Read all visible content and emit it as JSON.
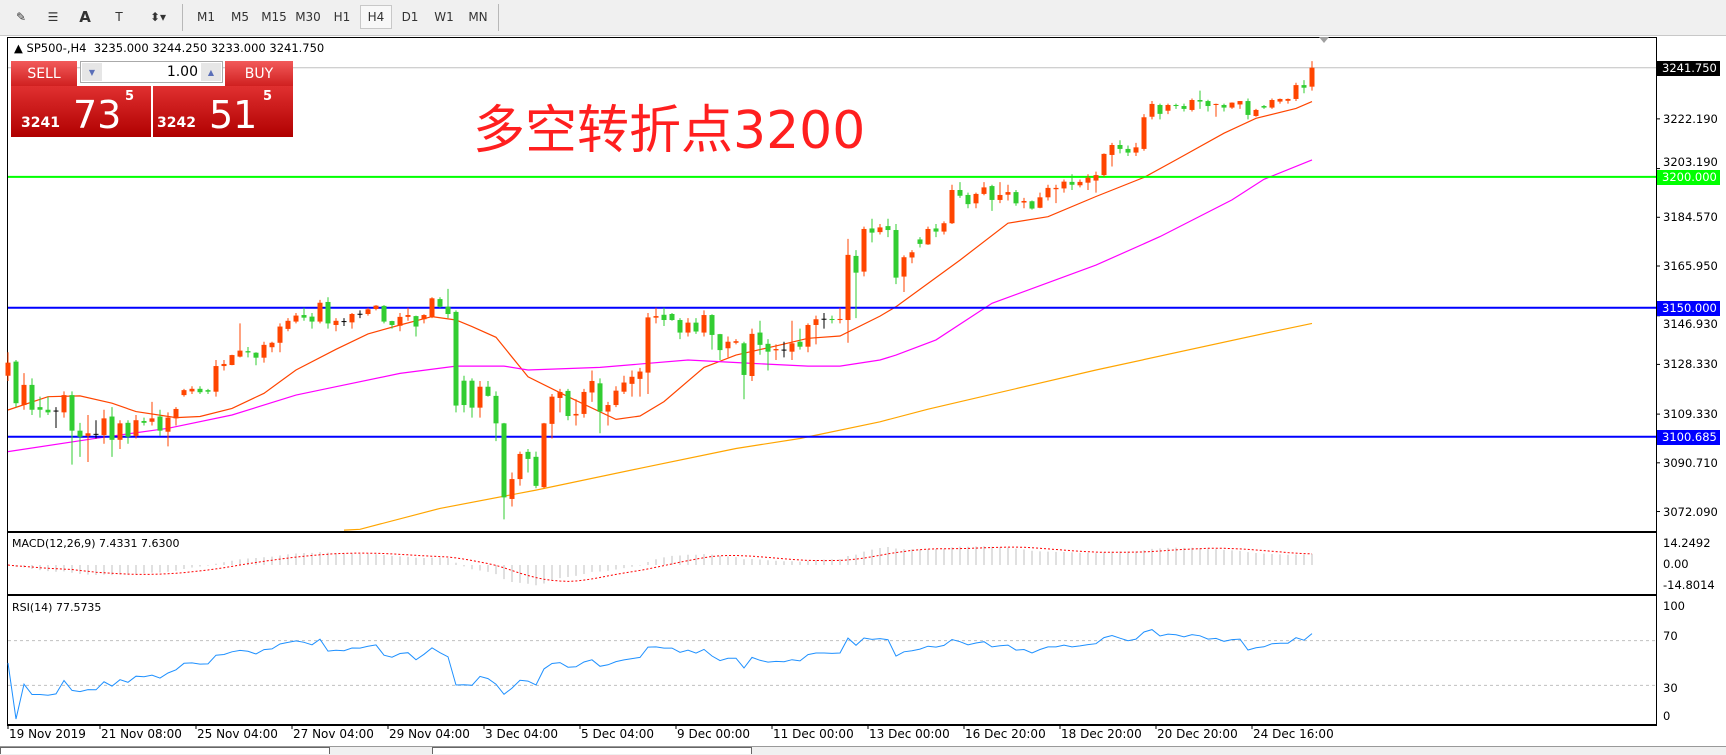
{
  "toolbar": {
    "tools": [
      {
        "name": "elliott-wave-icon",
        "glyph": "✎"
      },
      {
        "name": "fibo-fan-icon",
        "glyph": "☰"
      },
      {
        "name": "text-icon",
        "glyph": "A"
      },
      {
        "name": "text-label-icon",
        "glyph": "T"
      },
      {
        "name": "arrows-dropdown-icon",
        "glyph": "⬍▾"
      }
    ],
    "timeframes": [
      "M1",
      "M5",
      "M15",
      "M30",
      "H1",
      "H4",
      "D1",
      "W1",
      "MN"
    ],
    "active_timeframe": "H4"
  },
  "header": {
    "arrow": "▲",
    "symbol": "SP500-,H4",
    "ohlc": "3235.000 3244.250 3233.000 3241.750"
  },
  "trade_panel": {
    "sell_label": "SELL",
    "buy_label": "BUY",
    "lot": "1.00",
    "sell_price": {
      "prefix": "3241",
      "big": "73",
      "sup": "5"
    },
    "buy_price": {
      "prefix": "3242",
      "big": "51",
      "sup": "5"
    }
  },
  "annotation": "多空转折点3200",
  "colors": {
    "up": "#ff4500",
    "down": "#32cd32",
    "doji": "#000000",
    "ma_fast": "#ff4500",
    "ma_mid": "#ff00ff",
    "ma_slow": "#ffa500",
    "support_green": "#00ff00",
    "level_blue": "#0000ff",
    "rsi": "#1e90ff",
    "macd_hist": "#c0c0c0",
    "macd_signal": "#ff0000"
  },
  "price_axis": {
    "ticks": [
      "3222.190",
      "3203.190",
      "3184.570",
      "3165.950",
      "3146.930",
      "3128.330",
      "3109.330",
      "3090.710",
      "3072.090"
    ],
    "current": "3241.750",
    "levels": [
      {
        "value": "3200.000",
        "color": "#00ff00"
      },
      {
        "value": "3150.000",
        "color": "#0000ff"
      },
      {
        "value": "3100.685",
        "color": "#0000ff"
      }
    ]
  },
  "macd": {
    "label": "MACD(12,26,9) 7.4331 7.6300",
    "ticks": [
      "14.2492",
      "0.00",
      "-14.8014"
    ]
  },
  "rsi": {
    "label": "RSI(14) 77.5735",
    "ticks": [
      "100",
      "70",
      "30",
      "0"
    ],
    "levels": [
      70,
      30
    ]
  },
  "time_axis": [
    "19 Nov 2019",
    "21 Nov 08:00",
    "25 Nov 04:00",
    "27 Nov 04:00",
    "29 Nov 04:00",
    "3 Dec 04:00",
    "5 Dec 04:00",
    "9 Dec 00:00",
    "11 Dec 00:00",
    "13 Dec 00:00",
    "16 Dec 20:00",
    "18 Dec 20:00",
    "20 Dec 20:00",
    "24 Dec 16:00"
  ],
  "chart_data": {
    "type": "candlestick",
    "symbol": "SP500-",
    "timeframe": "H4",
    "ylim": [
      3065,
      3248
    ],
    "candles_ohlc": [
      [
        3124,
        3133,
        3122,
        3129
      ],
      [
        3129.4,
        3130,
        3112,
        3113.5
      ],
      [
        3112.8,
        3125,
        3111,
        3120.5
      ],
      [
        3120.5,
        3123,
        3109,
        3111
      ],
      [
        3112,
        3116,
        3108,
        3111
      ],
      [
        3111,
        3116,
        3109,
        3110
      ],
      [
        3110.5,
        3112,
        3104,
        3110.5
      ],
      [
        3110,
        3118,
        3108,
        3116.6
      ],
      [
        3116.6,
        3118,
        3090,
        3103
      ],
      [
        3103,
        3106,
        3093,
        3100.7
      ],
      [
        3101,
        3109,
        3091,
        3102
      ],
      [
        3101.6,
        3107,
        3100,
        3101.6
      ],
      [
        3101.3,
        3111,
        3098,
        3107.7
      ],
      [
        3108.4,
        3112,
        3093,
        3099.5
      ],
      [
        3099.5,
        3107,
        3096,
        3105.8
      ],
      [
        3106,
        3107,
        3098,
        3100.7
      ],
      [
        3101,
        3109,
        3100,
        3107
      ],
      [
        3106.7,
        3108,
        3105,
        3106
      ],
      [
        3106.4,
        3114,
        3105,
        3107.7
      ],
      [
        3108.4,
        3111,
        3101,
        3103
      ],
      [
        3102.6,
        3110,
        3097,
        3108
      ],
      [
        3107.7,
        3112,
        3105,
        3111.3
      ],
      [
        3116.6,
        3119,
        3116,
        3118.5
      ],
      [
        3118,
        3120,
        3117,
        3119
      ],
      [
        3119,
        3120,
        3117,
        3117.7
      ],
      [
        3118.5,
        3119,
        3117,
        3117.9
      ],
      [
        3117.9,
        3130,
        3116,
        3127.7
      ],
      [
        3127.7,
        3130,
        3126,
        3128.5
      ],
      [
        3128.1,
        3132,
        3128,
        3131.9
      ],
      [
        3131.3,
        3144,
        3131,
        3133.6
      ],
      [
        3133.4,
        3135,
        3131,
        3132.9
      ],
      [
        3132.8,
        3133,
        3128,
        3130.9
      ],
      [
        3130.9,
        3137,
        3129,
        3135.8
      ],
      [
        3134.9,
        3137,
        3133,
        3136.6
      ],
      [
        3136.6,
        3144,
        3133,
        3142.8
      ],
      [
        3141.9,
        3146,
        3141,
        3145
      ],
      [
        3144.7,
        3148,
        3144,
        3147
      ],
      [
        3147.2,
        3150,
        3145,
        3146.2
      ],
      [
        3146.6,
        3148,
        3142,
        3144.7
      ],
      [
        3144.7,
        3153,
        3144,
        3151.9
      ],
      [
        3152.2,
        3154,
        3142,
        3144
      ],
      [
        3143.4,
        3146,
        3141,
        3145
      ],
      [
        3144.7,
        3146,
        3143,
        3144.7
      ],
      [
        3144.4,
        3148,
        3142,
        3147.6
      ],
      [
        3147.5,
        3149,
        3146,
        3147.5
      ],
      [
        3147.6,
        3150,
        3147,
        3149.4
      ],
      [
        3149.5,
        3151,
        3149,
        3150.8
      ],
      [
        3150.7,
        3151,
        3144,
        3144.7
      ],
      [
        3144.9,
        3145,
        3142,
        3143.4
      ],
      [
        3143.1,
        3148,
        3141,
        3146.5
      ],
      [
        3146.5,
        3150,
        3145,
        3147.2
      ],
      [
        3146.8,
        3147,
        3139,
        3142.8
      ],
      [
        3145.6,
        3147.5,
        3144,
        3147.2
      ],
      [
        3146.6,
        3154,
        3146,
        3153.6
      ],
      [
        3153.3,
        3154,
        3150,
        3150.4
      ],
      [
        3150.4,
        3157.2,
        3146,
        3147.6
      ],
      [
        3148.4,
        3149,
        3110,
        3112.6
      ],
      [
        3122.1,
        3124,
        3110,
        3112.8
      ],
      [
        3122.1,
        3123,
        3108,
        3111.8
      ],
      [
        3111.8,
        3122,
        3108,
        3119.8
      ],
      [
        3119.8,
        3122,
        3116,
        3116.3
      ],
      [
        3116.3,
        3118,
        3099,
        3105.8
      ],
      [
        3105.8,
        3106,
        3069.1,
        3077.5
      ],
      [
        3076.9,
        3087,
        3074,
        3084.5
      ],
      [
        3084.5,
        3095,
        3082,
        3094.1
      ],
      [
        3094.9,
        3096,
        3087,
        3092.2
      ],
      [
        3093,
        3095,
        3081,
        3081.9
      ],
      [
        3081.4,
        3106,
        3081,
        3105.8
      ],
      [
        3105.6,
        3117,
        3100,
        3116
      ],
      [
        3115.5,
        3119,
        3110,
        3117.8
      ],
      [
        3118.2,
        3119,
        3107,
        3108.6
      ],
      [
        3108.8,
        3115,
        3105,
        3109.4
      ],
      [
        3109.4,
        3119,
        3108,
        3117.8
      ],
      [
        3117.6,
        3126,
        3114,
        3122
      ],
      [
        3121.1,
        3123,
        3102,
        3110.3
      ],
      [
        3110.3,
        3114,
        3105,
        3112.8
      ],
      [
        3112.8,
        3120,
        3112,
        3118.3
      ],
      [
        3117.9,
        3124,
        3117,
        3121.4
      ],
      [
        3120.9,
        3126,
        3116,
        3123.6
      ],
      [
        3122.8,
        3127,
        3116,
        3125.6
      ],
      [
        3125.2,
        3148,
        3117,
        3146.3
      ],
      [
        3146.2,
        3150,
        3144,
        3146.8
      ],
      [
        3147.3,
        3150,
        3143,
        3145.3
      ],
      [
        3147.6,
        3148,
        3145,
        3145.3
      ],
      [
        3145.3,
        3146,
        3138,
        3140.5
      ],
      [
        3140.5,
        3146,
        3139,
        3144.3
      ],
      [
        3144.3,
        3146,
        3140,
        3140.9
      ],
      [
        3140.5,
        3149,
        3139,
        3147.2
      ],
      [
        3147.2,
        3147.5,
        3134,
        3139.6
      ],
      [
        3139.9,
        3140,
        3130,
        3133.8
      ],
      [
        3134.5,
        3139,
        3131,
        3137
      ],
      [
        3136.6,
        3138,
        3136,
        3137.2
      ],
      [
        3136.4,
        3137,
        3115,
        3124.3
      ],
      [
        3123.9,
        3142,
        3122,
        3140
      ],
      [
        3140.5,
        3145,
        3132,
        3135.8
      ],
      [
        3136.2,
        3138,
        3126,
        3133.2
      ],
      [
        3133.7,
        3136,
        3130,
        3134.2
      ],
      [
        3133.8,
        3137,
        3131,
        3133.8
      ],
      [
        3133.2,
        3145,
        3130,
        3136.4
      ],
      [
        3137,
        3142,
        3134,
        3135.1
      ],
      [
        3135.1,
        3144,
        3133,
        3143.4
      ],
      [
        3143.4,
        3147,
        3136,
        3145.6
      ],
      [
        3145.6,
        3148,
        3142,
        3145.6
      ],
      [
        3145.7,
        3147,
        3144,
        3145.3
      ],
      [
        3145.3,
        3150,
        3144,
        3145.7
      ],
      [
        3145.3,
        3176.3,
        3136.6,
        3170.2
      ],
      [
        3169.8,
        3172,
        3146,
        3163.4
      ],
      [
        3163.8,
        3181,
        3162,
        3180.1
      ],
      [
        3180.3,
        3184,
        3175,
        3178.7
      ],
      [
        3178.9,
        3182,
        3178,
        3180.7
      ],
      [
        3181.2,
        3184,
        3177,
        3179.7
      ],
      [
        3179.7,
        3182,
        3159,
        3161.5
      ],
      [
        3161.9,
        3170,
        3156,
        3169.3
      ],
      [
        3169.2,
        3172,
        3167,
        3171.2
      ],
      [
        3176.1,
        3177,
        3173,
        3174.4
      ],
      [
        3174.2,
        3181,
        3174,
        3180.1
      ],
      [
        3180.3,
        3182,
        3177,
        3179.1
      ],
      [
        3179.1,
        3183,
        3178,
        3182.3
      ],
      [
        3182.3,
        3197,
        3182,
        3195
      ],
      [
        3195,
        3198,
        3192,
        3192.8
      ],
      [
        3193.1,
        3194,
        3188,
        3189.6
      ],
      [
        3189.9,
        3194,
        3188,
        3193.5
      ],
      [
        3193.5,
        3198,
        3193,
        3196
      ],
      [
        3196.5,
        3197,
        3187,
        3191.2
      ],
      [
        3191.2,
        3198,
        3190,
        3193.1
      ],
      [
        3193.2,
        3197,
        3191,
        3194.2
      ],
      [
        3194.2,
        3195,
        3189,
        3189.9
      ],
      [
        3190.2,
        3192,
        3188,
        3190.8
      ],
      [
        3190.7,
        3191,
        3187.5,
        3187.9
      ],
      [
        3188.2,
        3194,
        3188,
        3192.2
      ],
      [
        3192.2,
        3197,
        3191,
        3195.8
      ],
      [
        3195.3,
        3197,
        3190,
        3195.8
      ],
      [
        3195.6,
        3199,
        3194,
        3198.2
      ],
      [
        3198.1,
        3201,
        3195,
        3197
      ],
      [
        3196.8,
        3199,
        3196,
        3198.1
      ],
      [
        3197.8,
        3201,
        3195,
        3199.7
      ],
      [
        3198.6,
        3202,
        3194,
        3200.7
      ],
      [
        3200.7,
        3209,
        3200,
        3208.8
      ],
      [
        3208.4,
        3213,
        3204,
        3212.2
      ],
      [
        3212.2,
        3214,
        3209,
        3210.7
      ],
      [
        3210.7,
        3212,
        3208,
        3209.3
      ],
      [
        3209.3,
        3213,
        3208,
        3211.3
      ],
      [
        3210.7,
        3224,
        3210,
        3222.8
      ],
      [
        3223,
        3229,
        3222,
        3227.9
      ],
      [
        3227.5,
        3228,
        3222,
        3224.1
      ],
      [
        3225.3,
        3228,
        3224,
        3227.5
      ],
      [
        3227.5,
        3228,
        3226,
        3227.1
      ],
      [
        3227.1,
        3228,
        3225,
        3226
      ],
      [
        3225.6,
        3230,
        3225,
        3229.4
      ],
      [
        3229.4,
        3233,
        3226,
        3228.8
      ],
      [
        3229,
        3229.5,
        3225,
        3227.1
      ],
      [
        3227.5,
        3228,
        3223,
        3227.9
      ],
      [
        3227.5,
        3228,
        3225,
        3226.5
      ],
      [
        3226.5,
        3228.5,
        3226,
        3228.4
      ],
      [
        3227.7,
        3229,
        3226,
        3229
      ],
      [
        3229,
        3230,
        3222,
        3223.7
      ],
      [
        3223.3,
        3226,
        3223,
        3225.6
      ],
      [
        3227.1,
        3227.5,
        3226,
        3226.5
      ],
      [
        3226.5,
        3230,
        3226,
        3229.4
      ],
      [
        3228.8,
        3230,
        3228,
        3229.8
      ],
      [
        3229.1,
        3230,
        3228,
        3229.8
      ],
      [
        3229.8,
        3236,
        3229,
        3235.1
      ],
      [
        3235.1,
        3237,
        3232,
        3234.1
      ],
      [
        3234.5,
        3244.25,
        3233,
        3241.75
      ]
    ],
    "moving_averages": [
      {
        "color": "#ff4500",
        "points": [
          [
            0,
            3110.9
          ],
          [
            5,
            3116
          ],
          [
            9,
            3116.3
          ],
          [
            13,
            3113.5
          ],
          [
            16,
            3110.3
          ],
          [
            21,
            3108
          ],
          [
            24,
            3108.4
          ],
          [
            28,
            3111.5
          ],
          [
            32,
            3117.3
          ],
          [
            36,
            3126.2
          ],
          [
            41,
            3134.1
          ],
          [
            45,
            3140
          ],
          [
            49,
            3143.4
          ],
          [
            53,
            3146.6
          ],
          [
            56,
            3145.3
          ],
          [
            58,
            3142.8
          ],
          [
            61,
            3138.7
          ],
          [
            65,
            3123.6
          ],
          [
            70,
            3116
          ],
          [
            76,
            3107.3
          ],
          [
            79,
            3108.6
          ],
          [
            82,
            3114.1
          ],
          [
            87,
            3127.2
          ],
          [
            91,
            3131.9
          ],
          [
            96,
            3135.4
          ],
          [
            100,
            3138.3
          ],
          [
            104,
            3139.2
          ],
          [
            109,
            3146.8
          ],
          [
            111,
            3150.4
          ],
          [
            119,
            3168.2
          ],
          [
            125,
            3182.3
          ],
          [
            130,
            3184.8
          ],
          [
            136,
            3192.5
          ],
          [
            142,
            3199.8
          ],
          [
            146,
            3206.5
          ],
          [
            152,
            3216.7
          ],
          [
            156,
            3222.4
          ],
          [
            161,
            3226.2
          ],
          [
            163,
            3228.8
          ]
        ]
      },
      {
        "color": "#ff00ff",
        "points": [
          [
            0,
            3095
          ],
          [
            11,
            3100.1
          ],
          [
            20,
            3103.9
          ],
          [
            28,
            3109
          ],
          [
            36,
            3116.6
          ],
          [
            41,
            3119.8
          ],
          [
            49,
            3124.9
          ],
          [
            56,
            3127.7
          ],
          [
            62,
            3127.7
          ],
          [
            65,
            3126.2
          ],
          [
            74,
            3127.2
          ],
          [
            85,
            3130
          ],
          [
            93,
            3128.7
          ],
          [
            100,
            3127.7
          ],
          [
            104,
            3127.7
          ],
          [
            109,
            3130
          ],
          [
            111,
            3131.9
          ],
          [
            116,
            3137.7
          ],
          [
            123,
            3151.7
          ],
          [
            136,
            3166.3
          ],
          [
            144,
            3177.2
          ],
          [
            153,
            3191.2
          ],
          [
            157,
            3199.1
          ],
          [
            163,
            3206.5
          ]
        ]
      },
      {
        "color": "#ffa500",
        "points": [
          [
            42,
            3065
          ],
          [
            44,
            3065.3
          ],
          [
            54,
            3073.3
          ],
          [
            66,
            3080.3
          ],
          [
            79,
            3088.6
          ],
          [
            91,
            3096.2
          ],
          [
            99,
            3100
          ],
          [
            109,
            3106.4
          ],
          [
            115,
            3111.2
          ],
          [
            136,
            3126.2
          ],
          [
            158,
            3140.8
          ],
          [
            163,
            3144
          ]
        ]
      }
    ],
    "horizontal_levels": [
      3200.0,
      3150.0,
      3100.685
    ],
    "current_price": 3241.75
  }
}
